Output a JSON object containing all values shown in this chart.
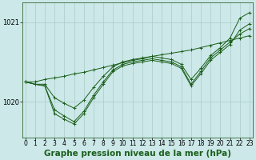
{
  "title": "Graphe pression niveau de la mer (hPa)",
  "background_color": "#cce8e8",
  "grid_color": "#aacccc",
  "line_color": "#1a5e1a",
  "hours": [
    0,
    1,
    2,
    3,
    4,
    5,
    6,
    7,
    8,
    9,
    10,
    11,
    12,
    13,
    14,
    15,
    16,
    17,
    18,
    19,
    20,
    21,
    22,
    23
  ],
  "series": [
    [
      1020.25,
      1020.25,
      1020.28,
      1020.3,
      1020.32,
      1020.35,
      1020.37,
      1020.4,
      1020.43,
      1020.46,
      1020.49,
      1020.52,
      1020.54,
      1020.57,
      1020.59,
      1020.61,
      1020.63,
      1020.65,
      1020.68,
      1020.71,
      1020.74,
      1020.77,
      1020.8,
      1020.83
    ],
    [
      1020.25,
      1020.22,
      1020.2,
      1019.85,
      1019.78,
      1019.72,
      1019.85,
      1020.05,
      1020.22,
      1020.38,
      1020.45,
      1020.48,
      1020.5,
      1020.52,
      1020.5,
      1020.48,
      1020.42,
      1020.2,
      1020.35,
      1020.52,
      1020.62,
      1020.72,
      1020.9,
      1020.98
    ],
    [
      1020.25,
      1020.22,
      1020.2,
      1019.9,
      1019.82,
      1019.75,
      1019.88,
      1020.08,
      1020.25,
      1020.4,
      1020.47,
      1020.5,
      1020.52,
      1020.54,
      1020.52,
      1020.5,
      1020.44,
      1020.22,
      1020.38,
      1020.55,
      1020.65,
      1020.75,
      1020.85,
      1020.92
    ],
    [
      1020.25,
      1020.22,
      1020.22,
      1020.05,
      1019.98,
      1019.92,
      1020.02,
      1020.18,
      1020.32,
      1020.44,
      1020.5,
      1020.53,
      1020.55,
      1020.57,
      1020.55,
      1020.53,
      1020.47,
      1020.28,
      1020.42,
      1020.58,
      1020.68,
      1020.8,
      1021.05,
      1021.12
    ]
  ],
  "ylim": [
    1019.55,
    1021.25
  ],
  "yticks": [
    1020,
    1021
  ],
  "xlim": [
    -0.3,
    23.3
  ],
  "title_fontsize": 7.5,
  "tick_fontsize": 5.5,
  "ylabel_color": "#1a5e1a"
}
